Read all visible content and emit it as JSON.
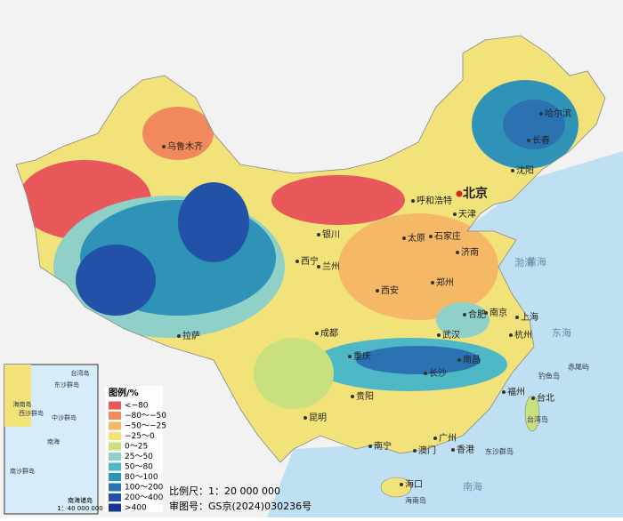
{
  "legend": {
    "title": "图例/%",
    "items": [
      {
        "label": "<−80",
        "color": "#e8575a"
      },
      {
        "label": "−80～−50",
        "color": "#f08a5d"
      },
      {
        "label": "−50～−25",
        "color": "#f5b866"
      },
      {
        "label": "−25～0",
        "color": "#f2e27a"
      },
      {
        "label": "0～25",
        "color": "#c9e07e"
      },
      {
        "label": "25～50",
        "color": "#8fd0c8"
      },
      {
        "label": "50～80",
        "color": "#4fb8c6"
      },
      {
        "label": "80～100",
        "color": "#2f93b8"
      },
      {
        "label": "100～200",
        "color": "#2b72b3"
      },
      {
        "label": "200～400",
        "color": "#2451a8"
      },
      {
        "label": ">400",
        "color": "#1a3690"
      }
    ]
  },
  "cities": [
    "乌鲁木齐",
    "哈尔滨",
    "长春",
    "沈阳",
    "北京",
    "天津",
    "呼和浩特",
    "太原",
    "石家庄",
    "济南",
    "银川",
    "西宁",
    "兰州",
    "郑州",
    "西安",
    "合肥",
    "南京",
    "上海",
    "武汉",
    "杭州",
    "成都",
    "重庆",
    "长沙",
    "南昌",
    "福州",
    "拉萨",
    "贵阳",
    "昆明",
    "南宁",
    "广州",
    "澳门",
    "香港",
    "海口",
    "台北"
  ],
  "seas": [
    "渤海",
    "黄海",
    "东海",
    "南海"
  ],
  "islands": [
    "钓鱼岛",
    "赤尾屿",
    "台湾岛",
    "东沙群岛",
    "海南岛"
  ],
  "inset": {
    "title": "南海诸岛",
    "scale": "1：40 000 000",
    "labels": [
      "台湾岛",
      "东沙群岛",
      "海南岛",
      "西沙群岛",
      "中沙群岛",
      "南海",
      "南沙群岛"
    ]
  },
  "scale": "比例尺：1：20 000 000",
  "approval": "审图号：GS京(2024)030236号"
}
